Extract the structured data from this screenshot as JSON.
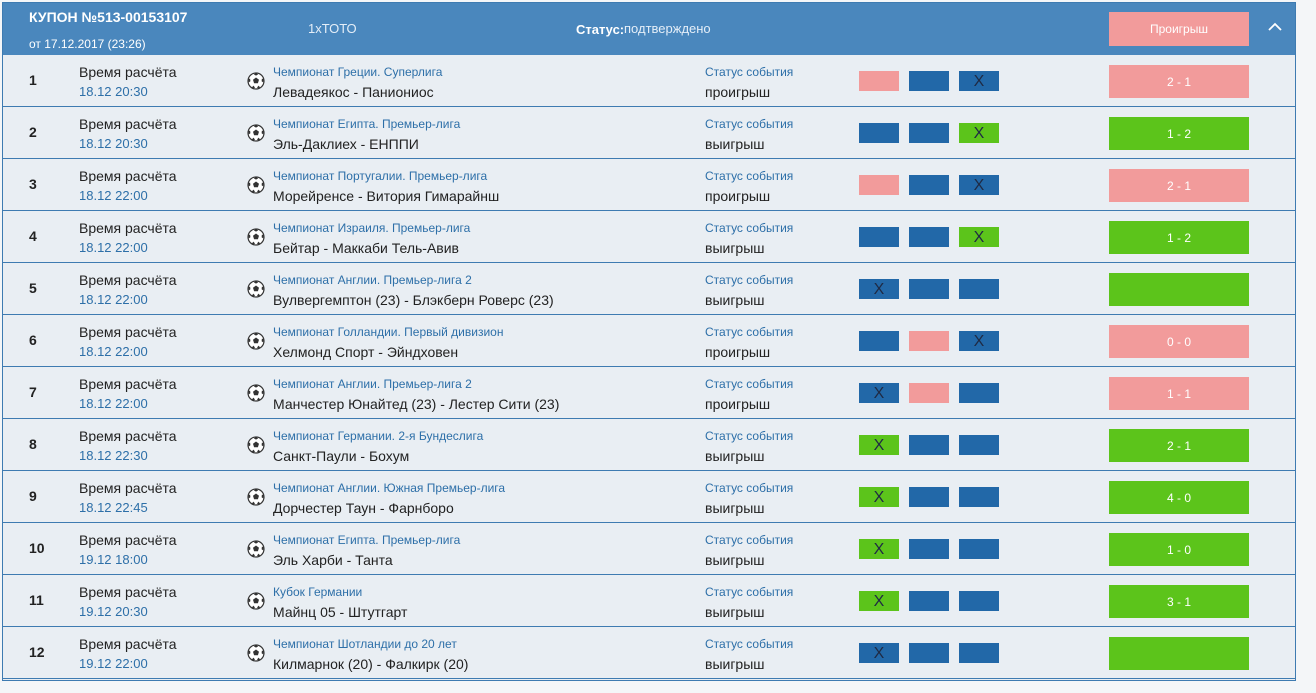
{
  "header": {
    "title": "КУПОН №513-00153107",
    "date": "от 17.12.2017 (23:26)",
    "type": "1хТОТО",
    "status_label": "Статус:",
    "status_value": "подтверждено",
    "result_label": "Проигрыш"
  },
  "colors": {
    "header_bg": "#4a87bd",
    "blue": "#2268a8",
    "pink": "#f29b9b",
    "green": "#5cc41b",
    "link": "#2d6fa8"
  },
  "calc_label": "Время расчёта",
  "event_status_label": "Статус события",
  "rows": [
    {
      "num": "1",
      "time": "18.12 20:30",
      "league": "Чемпионат Греции. Суперлига",
      "match": "Левадеякос - Паниониос",
      "status": "проигрыш",
      "cells": [
        {
          "color": "pink",
          "mark": ""
        },
        {
          "color": "blue",
          "mark": ""
        },
        {
          "color": "blue",
          "mark": "X"
        }
      ],
      "score": "2 - 1",
      "score_color": "pink"
    },
    {
      "num": "2",
      "time": "18.12 20:30",
      "league": "Чемпионат Египта. Премьер-лига",
      "match": "Эль-Даклиех - ЕНППИ",
      "status": "выигрыш",
      "cells": [
        {
          "color": "blue",
          "mark": ""
        },
        {
          "color": "blue",
          "mark": ""
        },
        {
          "color": "green",
          "mark": "X"
        }
      ],
      "score": "1 - 2",
      "score_color": "green"
    },
    {
      "num": "3",
      "time": "18.12 22:00",
      "league": "Чемпионат Португалии. Премьер-лига",
      "match": "Морейренсе - Витория Гимарайнш",
      "status": "проигрыш",
      "cells": [
        {
          "color": "pink",
          "mark": ""
        },
        {
          "color": "blue",
          "mark": ""
        },
        {
          "color": "blue",
          "mark": "X"
        }
      ],
      "score": "2 - 1",
      "score_color": "pink"
    },
    {
      "num": "4",
      "time": "18.12 22:00",
      "league": "Чемпионат Израиля. Премьер-лига",
      "match": "Бейтар - Маккаби Тель-Авив",
      "status": "выигрыш",
      "cells": [
        {
          "color": "blue",
          "mark": ""
        },
        {
          "color": "blue",
          "mark": ""
        },
        {
          "color": "green",
          "mark": "X"
        }
      ],
      "score": "1 - 2",
      "score_color": "green"
    },
    {
      "num": "5",
      "time": "18.12 22:00",
      "league": "Чемпионат Англии. Премьер-лига 2",
      "match": "Вулвергемптон (23) - Блэкберн Роверс (23)",
      "status": "выигрыш",
      "cells": [
        {
          "color": "blue",
          "mark": "X"
        },
        {
          "color": "blue",
          "mark": ""
        },
        {
          "color": "blue",
          "mark": ""
        }
      ],
      "score": "",
      "score_color": "green"
    },
    {
      "num": "6",
      "time": "18.12 22:00",
      "league": "Чемпионат Голландии. Первый дивизион",
      "match": "Хелмонд Спорт - Эйндховен",
      "status": "проигрыш",
      "cells": [
        {
          "color": "blue",
          "mark": ""
        },
        {
          "color": "pink",
          "mark": ""
        },
        {
          "color": "blue",
          "mark": "X"
        }
      ],
      "score": "0 - 0",
      "score_color": "pink"
    },
    {
      "num": "7",
      "time": "18.12 22:00",
      "league": "Чемпионат Англии. Премьер-лига 2",
      "match": "Манчестер Юнайтед (23) - Лестер Сити (23)",
      "status": "проигрыш",
      "cells": [
        {
          "color": "blue",
          "mark": "X"
        },
        {
          "color": "pink",
          "mark": ""
        },
        {
          "color": "blue",
          "mark": ""
        }
      ],
      "score": "1 - 1",
      "score_color": "pink"
    },
    {
      "num": "8",
      "time": "18.12 22:30",
      "league": "Чемпионат Германии. 2-я Бундеслига",
      "match": "Санкт-Паули - Бохум",
      "status": "выигрыш",
      "cells": [
        {
          "color": "green",
          "mark": "X"
        },
        {
          "color": "blue",
          "mark": ""
        },
        {
          "color": "blue",
          "mark": ""
        }
      ],
      "score": "2 - 1",
      "score_color": "green"
    },
    {
      "num": "9",
      "time": "18.12 22:45",
      "league": "Чемпионат Англии. Южная Премьер-лига",
      "match": "Дорчестер Таун - Фарнборо",
      "status": "выигрыш",
      "cells": [
        {
          "color": "green",
          "mark": "X"
        },
        {
          "color": "blue",
          "mark": ""
        },
        {
          "color": "blue",
          "mark": ""
        }
      ],
      "score": "4 - 0",
      "score_color": "green"
    },
    {
      "num": "10",
      "time": "19.12 18:00",
      "league": "Чемпионат Египта. Премьер-лига",
      "match": "Эль Харби - Танта",
      "status": "выигрыш",
      "cells": [
        {
          "color": "green",
          "mark": "X"
        },
        {
          "color": "blue",
          "mark": ""
        },
        {
          "color": "blue",
          "mark": ""
        }
      ],
      "score": "1 - 0",
      "score_color": "green"
    },
    {
      "num": "11",
      "time": "19.12 20:30",
      "league": "Кубок Германии",
      "match": "Майнц 05 - Штутгарт",
      "status": "выигрыш",
      "cells": [
        {
          "color": "green",
          "mark": "X"
        },
        {
          "color": "blue",
          "mark": ""
        },
        {
          "color": "blue",
          "mark": ""
        }
      ],
      "score": "3 - 1",
      "score_color": "green"
    },
    {
      "num": "12",
      "time": "19.12 22:00",
      "league": "Чемпионат Шотландии до 20 лет",
      "match": "Килмарнок (20) - Фалкирк (20)",
      "status": "выигрыш",
      "cells": [
        {
          "color": "blue",
          "mark": "X"
        },
        {
          "color": "blue",
          "mark": ""
        },
        {
          "color": "blue",
          "mark": ""
        }
      ],
      "score": "",
      "score_color": "green"
    }
  ]
}
